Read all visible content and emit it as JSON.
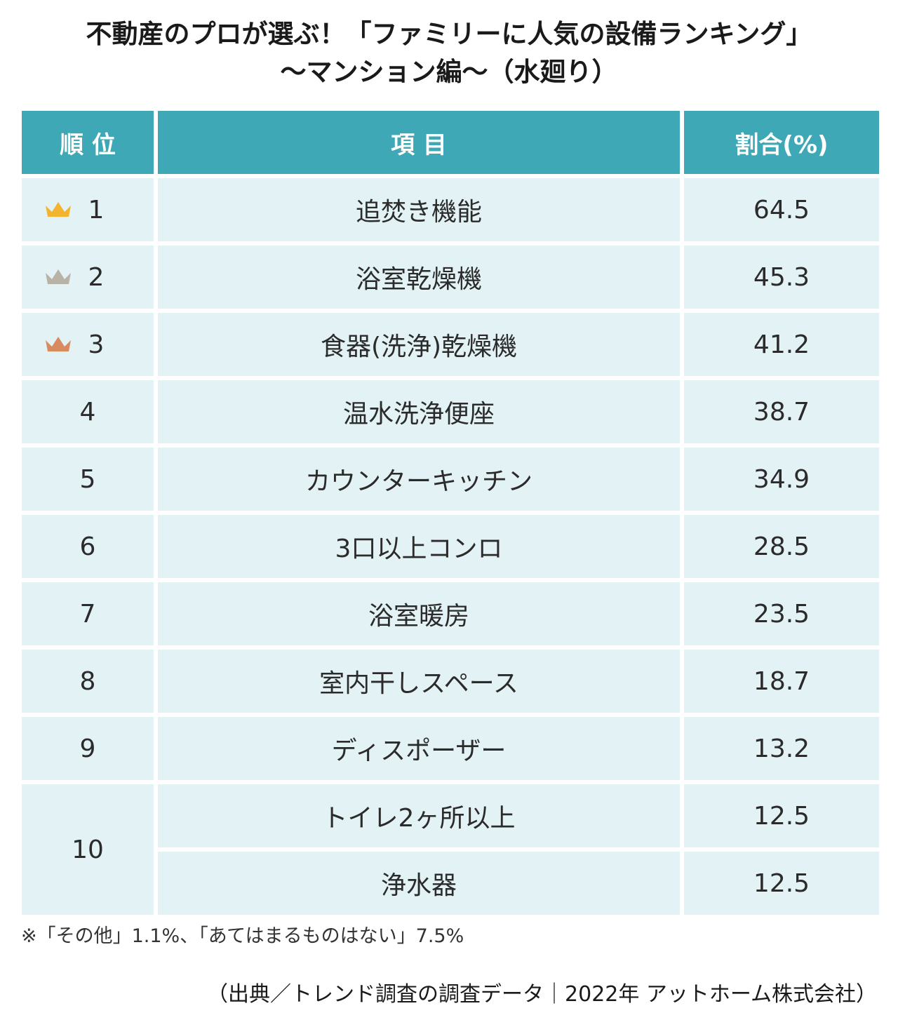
{
  "title": {
    "line1": "不動産のプロが選ぶ！「ファミリーに人気の設備ランキング」",
    "line2": "〜マンション編〜（水廻り）"
  },
  "table": {
    "headers": [
      "順 位",
      "項 目",
      "割合(%)"
    ],
    "rows": [
      {
        "rank": "1",
        "item": "追焚き機能",
        "value": "64.5",
        "crown": "gold-crown-icon"
      },
      {
        "rank": "2",
        "item": "浴室乾燥機",
        "value": "45.3",
        "crown": "silver-crown-icon"
      },
      {
        "rank": "3",
        "item": "食器(洗浄)乾燥機",
        "value": "41.2",
        "crown": "bronze-crown-icon"
      },
      {
        "rank": "4",
        "item": "温水洗浄便座",
        "value": "38.7"
      },
      {
        "rank": "5",
        "item": "カウンターキッチン",
        "value": "34.9"
      },
      {
        "rank": "6",
        "item": "3口以上コンロ",
        "value": "28.5"
      },
      {
        "rank": "7",
        "item": "浴室暖房",
        "value": "23.5"
      },
      {
        "rank": "8",
        "item": "室内干しスペース",
        "value": "18.7"
      },
      {
        "rank": "9",
        "item": "ディスポーザー",
        "value": "13.2"
      },
      {
        "rank": "10",
        "item": "トイレ2ヶ所以上",
        "value": "12.5"
      },
      {
        "rank": "10",
        "item": "浄水器",
        "value": "12.5"
      }
    ]
  },
  "colors": {
    "header_bg": "#3fa8b6",
    "row_bg": "#e3f2f5",
    "gold": "#f3b52f",
    "silver": "#b9b2a6",
    "bronze": "#d98b5f"
  },
  "note": "※「その他」1.1%、「あてはまるものはない」7.5%",
  "source": "（出典／トレンド調査の調査データ｜2022年 アットホーム株式会社）"
}
